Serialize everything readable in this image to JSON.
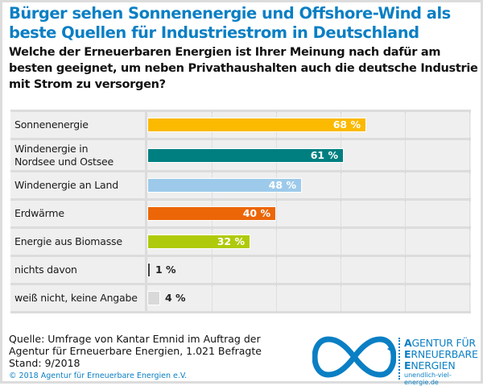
{
  "colors": {
    "title": "#0a7fc4",
    "row_bg": "#efefef",
    "border": "#dcdcdc"
  },
  "header": {
    "title": "Bürger sehen Sonnenenergie und Offshore-Wind als beste Quellen für Industriestrom in Deutschland",
    "subtitle": "Welche der Erneuerbaren Energien ist Ihrer Meinung nach dafür am besten geeignet, um neben Privathaushalten auch die deutsche Industrie mit Strom zu versorgen?"
  },
  "chart_data": {
    "type": "bar",
    "orientation": "horizontal",
    "title": "Bürger sehen Sonnenenergie und Offshore-Wind als beste Quellen für Industriestrom in Deutschland",
    "xlim": [
      0,
      100
    ],
    "grid": true,
    "grid_step": 20,
    "categories": [
      "Sonnenenergie",
      "Windenergie in Nordsee und Ostsee",
      "Windenergie an Land",
      "Erdwärme",
      "Energie aus Biomasse",
      "nichts davon",
      "weiß nicht, keine Angabe"
    ],
    "values": [
      68,
      61,
      48,
      40,
      32,
      1,
      4
    ],
    "labels": [
      "68 %",
      "61 %",
      "48 %",
      "40 %",
      "32 %",
      "1 %",
      "4 %"
    ],
    "colors": [
      "#fbb900",
      "#007f80",
      "#9dcaea",
      "#ec6608",
      "#afca0b",
      "#3c3c3c",
      "#d9d9d9"
    ],
    "unit": "%"
  },
  "rows": [
    {
      "label": "Sonnenenergie",
      "tall": false
    },
    {
      "label": "Windenergie in\nNordsee und Ostsee",
      "tall": true
    },
    {
      "label": "Windenergie an Land",
      "tall": false
    },
    {
      "label": "Erdwärme",
      "tall": false
    },
    {
      "label": "Energie aus Biomasse",
      "tall": false
    },
    {
      "label": "nichts davon",
      "tall": false
    },
    {
      "label": "weiß nicht, keine Angabe",
      "tall": false
    }
  ],
  "footer": {
    "source_line1": "Quelle: Umfrage von Kantar Emnid im Auftrag der",
    "source_line2": "Agentur für Erneuerbare Energien, 1.021 Befragte",
    "source_line3": "Stand: 9/2018",
    "copyright": "© 2018 Agentur für Erneuerbare Energien e.V."
  },
  "logo": {
    "line1_first": "A",
    "line1_rest": "GENTUR FÜR",
    "line2_first": "E",
    "line2_rest": "RNEUERBARE",
    "line3_first": "E",
    "line3_rest": "NERGIEN",
    "url": "unendlich-viel-energie.de"
  }
}
